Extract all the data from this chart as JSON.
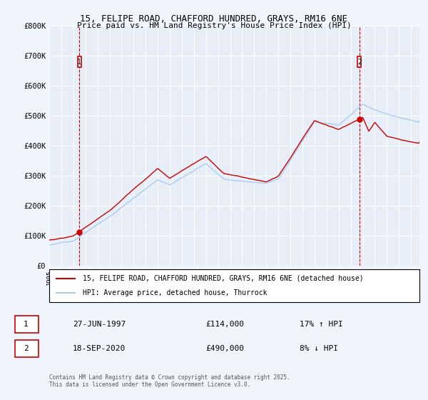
{
  "title": "15, FELIPE ROAD, CHAFFORD HUNDRED, GRAYS, RM16 6NE",
  "subtitle": "Price paid vs. HM Land Registry's House Price Index (HPI)",
  "ylim": [
    0,
    800000
  ],
  "yticks": [
    0,
    100000,
    200000,
    300000,
    400000,
    500000,
    600000,
    700000,
    800000
  ],
  "ytick_labels": [
    "£0",
    "£100K",
    "£200K",
    "£300K",
    "£400K",
    "£500K",
    "£600K",
    "£700K",
    "£800K"
  ],
  "fig_bg": "#f0f4fc",
  "plot_bg": "#e8eef8",
  "grid_color": "#ffffff",
  "red_color": "#cc0000",
  "blue_color": "#aaccee",
  "t1_x": 1997.49,
  "t2_x": 2020.72,
  "t1_price": 114000,
  "t2_price": 490000,
  "t1_date_str": "27-JUN-1997",
  "t2_date_str": "18-SEP-2020",
  "t1_price_str": "£114,000",
  "t2_price_str": "£490,000",
  "t1_note": "17% ↑ HPI",
  "t2_note": "8% ↓ HPI",
  "legend_red": "15, FELIPE ROAD, CHAFFORD HUNDRED, GRAYS, RM16 6NE (detached house)",
  "legend_blue": "HPI: Average price, detached house, Thurrock",
  "copyright": "Contains HM Land Registry data © Crown copyright and database right 2025.\nThis data is licensed under the Open Government Licence v3.0.",
  "xmin": 1995.0,
  "xmax": 2025.7
}
